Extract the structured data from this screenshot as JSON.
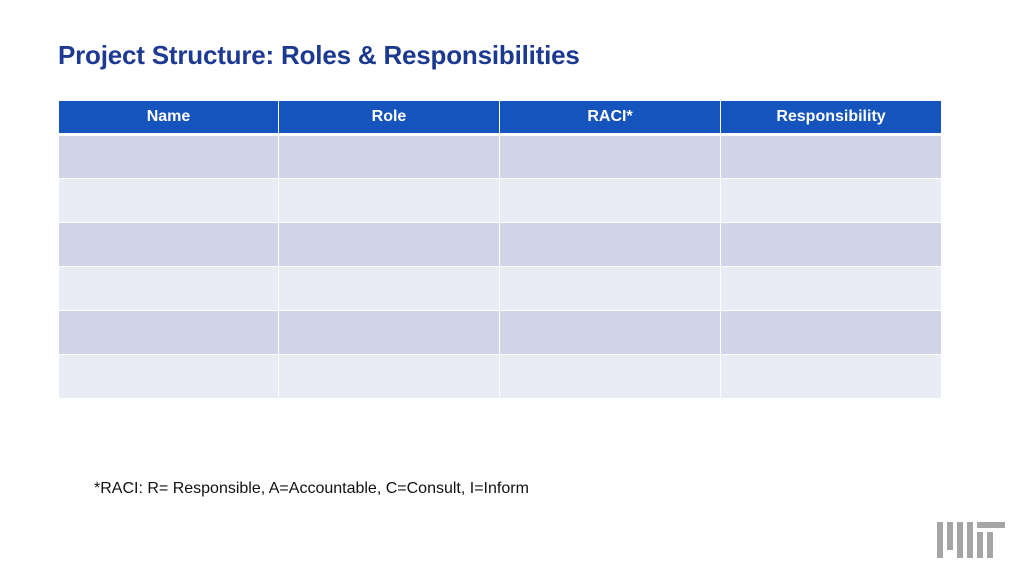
{
  "slide": {
    "title_prefix": "Project Structure: ",
    "title_bold": "Roles & Responsibilities",
    "table": {
      "headers": [
        "Name",
        "Role",
        "RACI*",
        "Responsibility"
      ],
      "rows": [
        [
          "",
          "",
          "",
          ""
        ],
        [
          "",
          "",
          "",
          ""
        ],
        [
          "",
          "",
          "",
          ""
        ],
        [
          "",
          "",
          "",
          ""
        ],
        [
          "",
          "",
          "",
          ""
        ],
        [
          "",
          "",
          "",
          ""
        ]
      ]
    },
    "footnote": "*RACI: R= Responsible, A=Accountable, C=Consult, I=Inform",
    "logo": {
      "icon": "mit-logo-icon",
      "color": "#a5a5a5"
    }
  },
  "colors": {
    "title": "#1f3a93",
    "header_bg": "#1554bd",
    "row_dark": "#cfd4e7",
    "row_light": "#e9ebf5"
  }
}
